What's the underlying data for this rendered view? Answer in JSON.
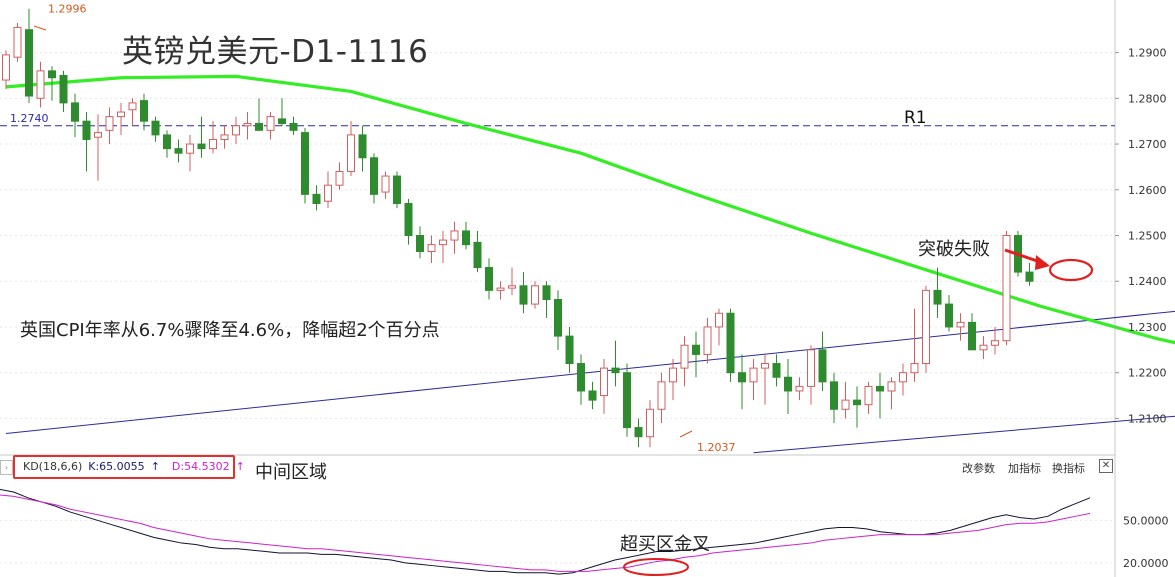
{
  "title": "英镑兑美元-D1-1116",
  "annotations": {
    "cpi_note": "英国CPI年率从6.7%骤降至4.6%，降幅超2个百分点",
    "breakout_fail": "突破失败",
    "middle_zone": "中间区域",
    "golden_cross": "超买区金叉",
    "r1": "R1"
  },
  "indicator": {
    "name": "KD(18,6,6)",
    "k_label": "K:65.0055",
    "d_label": "D:54.5302",
    "k_arrow": "↑",
    "d_arrow": "↑",
    "settings_glyph": "›",
    "tools": [
      "改参数",
      "加指标",
      "换指标"
    ],
    "close_glyph": "✕"
  },
  "chart_data": [
    {
      "type": "candlestick",
      "title": "英镑兑美元-D1-1116",
      "y_ticks": [
        "1.2900",
        "1.2800",
        "1.2700",
        "1.2600",
        "1.2500",
        "1.2400",
        "1.2300",
        "1.2200",
        "1.2100"
      ],
      "ylim": [
        1.202,
        1.3015
      ],
      "grid": true,
      "point_labels": [
        {
          "text": "1.2996",
          "price": 1.2996
        },
        {
          "text": "1.2037",
          "price": 1.2037
        }
      ],
      "horizontal_lines": [
        {
          "label": "1.2740",
          "price": 1.274,
          "style": "dashed",
          "color": "#2a2aa0"
        }
      ],
      "channel": {
        "color": "#2a2aa0",
        "upper": [
          [
            0,
            1.2067
          ],
          [
            140,
            1.2435
          ]
        ],
        "lower": [
          [
            65,
            1.2025
          ],
          [
            140,
            1.2188
          ]
        ]
      },
      "moving_average": {
        "color": "#33ee22",
        "points": [
          [
            0,
            1.2825
          ],
          [
            10,
            1.2845
          ],
          [
            20,
            1.2848
          ],
          [
            30,
            1.2815
          ],
          [
            40,
            1.2745
          ],
          [
            50,
            1.268
          ],
          [
            60,
            1.259
          ],
          [
            70,
            1.2505
          ],
          [
            80,
            1.2425
          ],
          [
            90,
            1.2345
          ],
          [
            100,
            1.2275
          ],
          [
            108,
            1.223
          ],
          [
            115,
            1.218
          ],
          [
            120,
            1.2195
          ],
          [
            126,
            1.2213
          ],
          [
            132,
            1.222
          ],
          [
            136,
            1.226
          ]
        ]
      },
      "candles": [
        [
          1.284,
          1.2905,
          1.282,
          1.2895
        ],
        [
          1.289,
          1.2965,
          1.288,
          1.2955
        ],
        [
          1.295,
          1.2996,
          1.279,
          1.2805
        ],
        [
          1.28,
          1.288,
          1.278,
          1.286
        ],
        [
          1.286,
          1.287,
          1.2795,
          1.2845
        ],
        [
          1.285,
          1.286,
          1.277,
          1.279
        ],
        [
          1.279,
          1.281,
          1.2715,
          1.275
        ],
        [
          1.275,
          1.277,
          1.264,
          1.271
        ],
        [
          1.2715,
          1.2765,
          1.262,
          1.2725
        ],
        [
          1.273,
          1.278,
          1.27,
          1.276
        ],
        [
          1.276,
          1.279,
          1.272,
          1.277
        ],
        [
          1.2775,
          1.28,
          1.274,
          1.279
        ],
        [
          1.2795,
          1.281,
          1.273,
          1.275
        ],
        [
          1.275,
          1.276,
          1.2705,
          1.272
        ],
        [
          1.272,
          1.273,
          1.267,
          1.269
        ],
        [
          1.269,
          1.271,
          1.266,
          1.268
        ],
        [
          1.268,
          1.272,
          1.264,
          1.27
        ],
        [
          1.27,
          1.276,
          1.267,
          1.269
        ],
        [
          1.269,
          1.275,
          1.268,
          1.271
        ],
        [
          1.271,
          1.274,
          1.269,
          1.272
        ],
        [
          1.272,
          1.276,
          1.27,
          1.274
        ],
        [
          1.274,
          1.277,
          1.271,
          1.2745
        ],
        [
          1.2745,
          1.28,
          1.273,
          1.273
        ],
        [
          1.273,
          1.277,
          1.271,
          1.276
        ],
        [
          1.2755,
          1.28,
          1.274,
          1.2745
        ],
        [
          1.2745,
          1.276,
          1.272,
          1.273
        ],
        [
          1.2725,
          1.2735,
          1.257,
          1.259
        ],
        [
          1.259,
          1.261,
          1.2555,
          1.257
        ],
        [
          1.2575,
          1.264,
          1.256,
          1.261
        ],
        [
          1.261,
          1.266,
          1.26,
          1.264
        ],
        [
          1.264,
          1.275,
          1.263,
          1.272
        ],
        [
          1.272,
          1.274,
          1.264,
          1.267
        ],
        [
          1.267,
          1.268,
          1.257,
          1.259
        ],
        [
          1.2595,
          1.264,
          1.258,
          1.263
        ],
        [
          1.263,
          1.264,
          1.256,
          1.257
        ],
        [
          1.257,
          1.258,
          1.248,
          1.25
        ],
        [
          1.25,
          1.252,
          1.245,
          1.2465
        ],
        [
          1.2465,
          1.25,
          1.244,
          1.248
        ],
        [
          1.248,
          1.251,
          1.244,
          1.249
        ],
        [
          1.249,
          1.253,
          1.246,
          1.251
        ],
        [
          1.251,
          1.253,
          1.247,
          1.248
        ],
        [
          1.2485,
          1.251,
          1.242,
          1.243
        ],
        [
          1.243,
          1.245,
          1.236,
          1.238
        ],
        [
          1.238,
          1.24,
          1.236,
          1.2385
        ],
        [
          1.2385,
          1.243,
          1.237,
          1.239
        ],
        [
          1.239,
          1.242,
          1.233,
          1.235
        ],
        [
          1.235,
          1.24,
          1.234,
          1.239
        ],
        [
          1.239,
          1.24,
          1.232,
          1.236
        ],
        [
          1.236,
          1.238,
          1.225,
          1.228
        ],
        [
          1.228,
          1.23,
          1.22,
          1.222
        ],
        [
          1.222,
          1.224,
          1.213,
          1.216
        ],
        [
          1.216,
          1.218,
          1.212,
          1.214
        ],
        [
          1.215,
          1.223,
          1.211,
          1.221
        ],
        [
          1.221,
          1.227,
          1.217,
          1.22
        ],
        [
          1.22,
          1.222,
          1.206,
          1.208
        ],
        [
          1.208,
          1.21,
          1.2037,
          1.206
        ],
        [
          1.206,
          1.214,
          1.2037,
          1.212
        ],
        [
          1.212,
          1.22,
          1.209,
          1.218
        ],
        [
          1.218,
          1.223,
          1.214,
          1.221
        ],
        [
          1.221,
          1.228,
          1.217,
          1.226
        ],
        [
          1.226,
          1.229,
          1.219,
          1.224
        ],
        [
          1.224,
          1.232,
          1.222,
          1.23
        ],
        [
          1.23,
          1.234,
          1.226,
          1.233
        ],
        [
          1.233,
          1.234,
          1.218,
          1.22
        ],
        [
          1.22,
          1.224,
          1.212,
          1.218
        ],
        [
          1.218,
          1.223,
          1.214,
          1.221
        ],
        [
          1.221,
          1.224,
          1.213,
          1.222
        ],
        [
          1.222,
          1.224,
          1.217,
          1.219
        ],
        [
          1.219,
          1.223,
          1.211,
          1.216
        ],
        [
          1.216,
          1.219,
          1.214,
          1.217
        ],
        [
          1.217,
          1.226,
          1.213,
          1.225
        ],
        [
          1.225,
          1.229,
          1.216,
          1.218
        ],
        [
          1.218,
          1.22,
          1.209,
          1.212
        ],
        [
          1.212,
          1.218,
          1.21,
          1.214
        ],
        [
          1.214,
          1.217,
          1.208,
          1.213
        ],
        [
          1.213,
          1.218,
          1.211,
          1.217
        ],
        [
          1.217,
          1.22,
          1.21,
          1.216
        ],
        [
          1.216,
          1.219,
          1.212,
          1.218
        ],
        [
          1.218,
          1.222,
          1.215,
          1.22
        ],
        [
          1.22,
          1.234,
          1.218,
          1.222
        ],
        [
          1.222,
          1.239,
          1.22,
          1.238
        ],
        [
          1.238,
          1.243,
          1.232,
          1.235
        ],
        [
          1.235,
          1.237,
          1.229,
          1.23
        ],
        [
          1.23,
          1.233,
          1.227,
          1.231
        ],
        [
          1.231,
          1.233,
          1.225,
          1.225
        ],
        [
          1.225,
          1.228,
          1.223,
          1.226
        ],
        [
          1.226,
          1.23,
          1.224,
          1.227
        ],
        [
          1.227,
          1.251,
          1.226,
          1.25
        ],
        [
          1.25,
          1.251,
          1.241,
          1.242
        ],
        [
          1.242,
          1.244,
          1.239,
          1.24
        ]
      ]
    },
    {
      "type": "line",
      "title": "KD(18,6,6)",
      "y_ticks": [
        "50.0000",
        "20.0000"
      ],
      "ylim": [
        10,
        80
      ],
      "grid": true,
      "series": [
        {
          "name": "K:65.0055",
          "color": "#111133",
          "values": [
            72,
            70,
            66,
            63,
            60,
            56,
            53,
            50,
            47,
            44,
            41,
            38,
            36,
            34,
            33,
            31,
            30,
            30,
            29,
            28,
            27,
            27,
            27,
            26,
            26,
            25,
            24,
            23,
            22,
            20,
            19,
            18,
            17,
            16,
            15,
            14,
            14,
            13,
            13,
            13,
            12,
            13,
            16,
            19,
            22,
            24,
            26,
            28,
            28,
            29,
            30,
            31,
            32,
            33,
            34,
            36,
            38,
            40,
            42,
            44,
            45,
            45,
            44,
            42,
            41,
            40,
            40,
            41,
            43,
            46,
            49,
            52,
            54,
            52,
            51,
            53,
            58,
            62,
            66
          ]
        },
        {
          "name": "D:54.5302",
          "color": "#cc22cc",
          "values": [
            68,
            67,
            65,
            63,
            61,
            58,
            56,
            54,
            52,
            50,
            48,
            45,
            43,
            41,
            39,
            37,
            36,
            35,
            34,
            33,
            32,
            31,
            30,
            30,
            29,
            28,
            27,
            26,
            25,
            24,
            23,
            22,
            21,
            20,
            19,
            18,
            17,
            16,
            15,
            15,
            14,
            14,
            14,
            15,
            16,
            17,
            19,
            21,
            22,
            24,
            25,
            27,
            28,
            29,
            30,
            31,
            32,
            33,
            34,
            36,
            37,
            38,
            39,
            40,
            40,
            40,
            40,
            40,
            41,
            42,
            43,
            45,
            47,
            48,
            48,
            49,
            51,
            53,
            55
          ]
        }
      ]
    }
  ]
}
